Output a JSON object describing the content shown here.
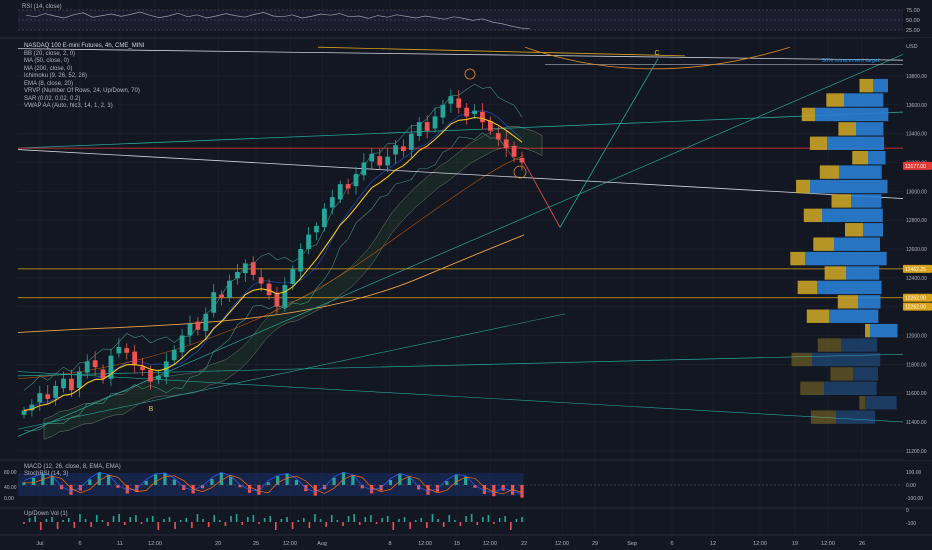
{
  "symbol_title": "NASDAQ 100 E-mini Futures, 4h, CME_MINI",
  "indicators": [
    "BB (20, close, 2, 0)",
    "MA (50, close, 0)",
    "MA (200, close, 0)",
    "Ichimoku (9, 26, 52, 26)",
    "EMA (8, close, 20)",
    "VRVP (Number Of Rows, 24, Up/Down, 70)",
    "SAR (0.02, 0.02, 0.2)",
    "VWAP AA (Auto, hlc3, 14, 1, 2, 3)"
  ],
  "rsi": {
    "label": "RSI (14, close)",
    "ticks": [
      "75.00",
      "50.00",
      "25.00"
    ],
    "levels": [
      75,
      50,
      25
    ],
    "values": [
      62,
      58,
      66,
      60,
      55,
      63,
      68,
      57,
      61,
      65,
      59,
      64,
      70,
      62,
      56,
      60,
      67,
      58,
      63,
      55,
      60,
      66,
      61,
      57,
      64,
      69,
      60,
      58,
      63,
      55,
      59,
      65,
      62,
      66,
      58,
      60,
      54,
      61,
      57,
      63,
      59,
      55,
      60,
      56,
      52,
      58,
      54,
      49,
      53,
      45,
      41,
      35,
      30,
      28
    ]
  },
  "chart_data": {
    "type": "candlestick",
    "title": "NASDAQ 100 E-mini Futures, 4h, CME_MINI",
    "currency": "USD",
    "y_ticks": [
      13800,
      13600,
      13400,
      13200,
      13000,
      12800,
      12600,
      12400,
      12200,
      12000,
      11800,
      11600,
      11400,
      11200
    ],
    "y_tick_labels": [
      "13800.00",
      "13600.00",
      "13400.00",
      "13200.00",
      "13000.00",
      "12800.00",
      "12600.00",
      "12400.00",
      "12200.00",
      "12000.00",
      "11800.00",
      "11600.00",
      "11400.00",
      "11200.00"
    ],
    "ylim": [
      11150,
      14050
    ],
    "x_tick_labels": [
      "Jul",
      "6",
      "11",
      "12:00",
      "20",
      "25",
      "12:00",
      "Aug",
      "8",
      "12:00",
      "15",
      "12:00",
      "22",
      "12:00",
      "29",
      "Sep",
      "6",
      "12",
      "12:00",
      "19",
      "12:00",
      "26"
    ],
    "close_series": [
      11480,
      11520,
      11600,
      11560,
      11650,
      11700,
      11620,
      11750,
      11820,
      11780,
      11700,
      11860,
      11920,
      11880,
      11800,
      11760,
      11680,
      11720,
      11820,
      11900,
      12000,
      12080,
      12040,
      12150,
      12300,
      12260,
      12380,
      12440,
      12500,
      12420,
      12360,
      12280,
      12200,
      12350,
      12460,
      12600,
      12700,
      12760,
      12880,
      12960,
      13050,
      13020,
      13120,
      13200,
      13260,
      13180,
      13240,
      13320,
      13280,
      13400,
      13480,
      13420,
      13520,
      13600,
      13660,
      13580,
      13520,
      13560,
      13480,
      13420,
      13360,
      13300,
      13240,
      13200
    ],
    "last_price": 13177.0,
    "annotations": [
      "B",
      "C",
      "50% retracement target"
    ],
    "price_labels": [
      "13177.00",
      "12462.25",
      "12262.00",
      "12262.00"
    ],
    "horizontal_levels": [
      13300,
      12460,
      12260
    ]
  },
  "macd": {
    "label": "MACD (12, 26, close, 8, EMA, EMA)",
    "stoch_label": "StochRSI (14, 3)",
    "ticks": [
      "100.00",
      "0.00",
      "-100.00"
    ],
    "left_ticks": [
      "80.00",
      "40.00",
      "0.00"
    ],
    "hist": [
      10,
      25,
      40,
      30,
      -15,
      -35,
      -20,
      20,
      45,
      35,
      -10,
      -30,
      -25,
      15,
      38,
      42,
      20,
      -18,
      -30,
      -12,
      22,
      44,
      30,
      -8,
      -28,
      -35,
      10,
      32,
      40,
      18,
      -22,
      -38,
      -15,
      26,
      45,
      34,
      -12,
      -30,
      -20,
      18,
      40,
      28,
      -16,
      -35,
      -24,
      14,
      36,
      30,
      -10,
      -32,
      -40,
      -20,
      -35,
      -45
    ]
  },
  "updown": {
    "label": "Up/Down Vol (1)",
    "ticks": [
      "0",
      "-100"
    ]
  },
  "colors": {
    "background": "#131722",
    "grid": "#1e222d",
    "up": "#26a69a",
    "down": "#ef5350",
    "ema": "#f5c518",
    "vp_up": "#2a7fd4",
    "vp_down": "#c9a227",
    "red_level": "#e53935",
    "gold_level": "#d9a21b"
  }
}
